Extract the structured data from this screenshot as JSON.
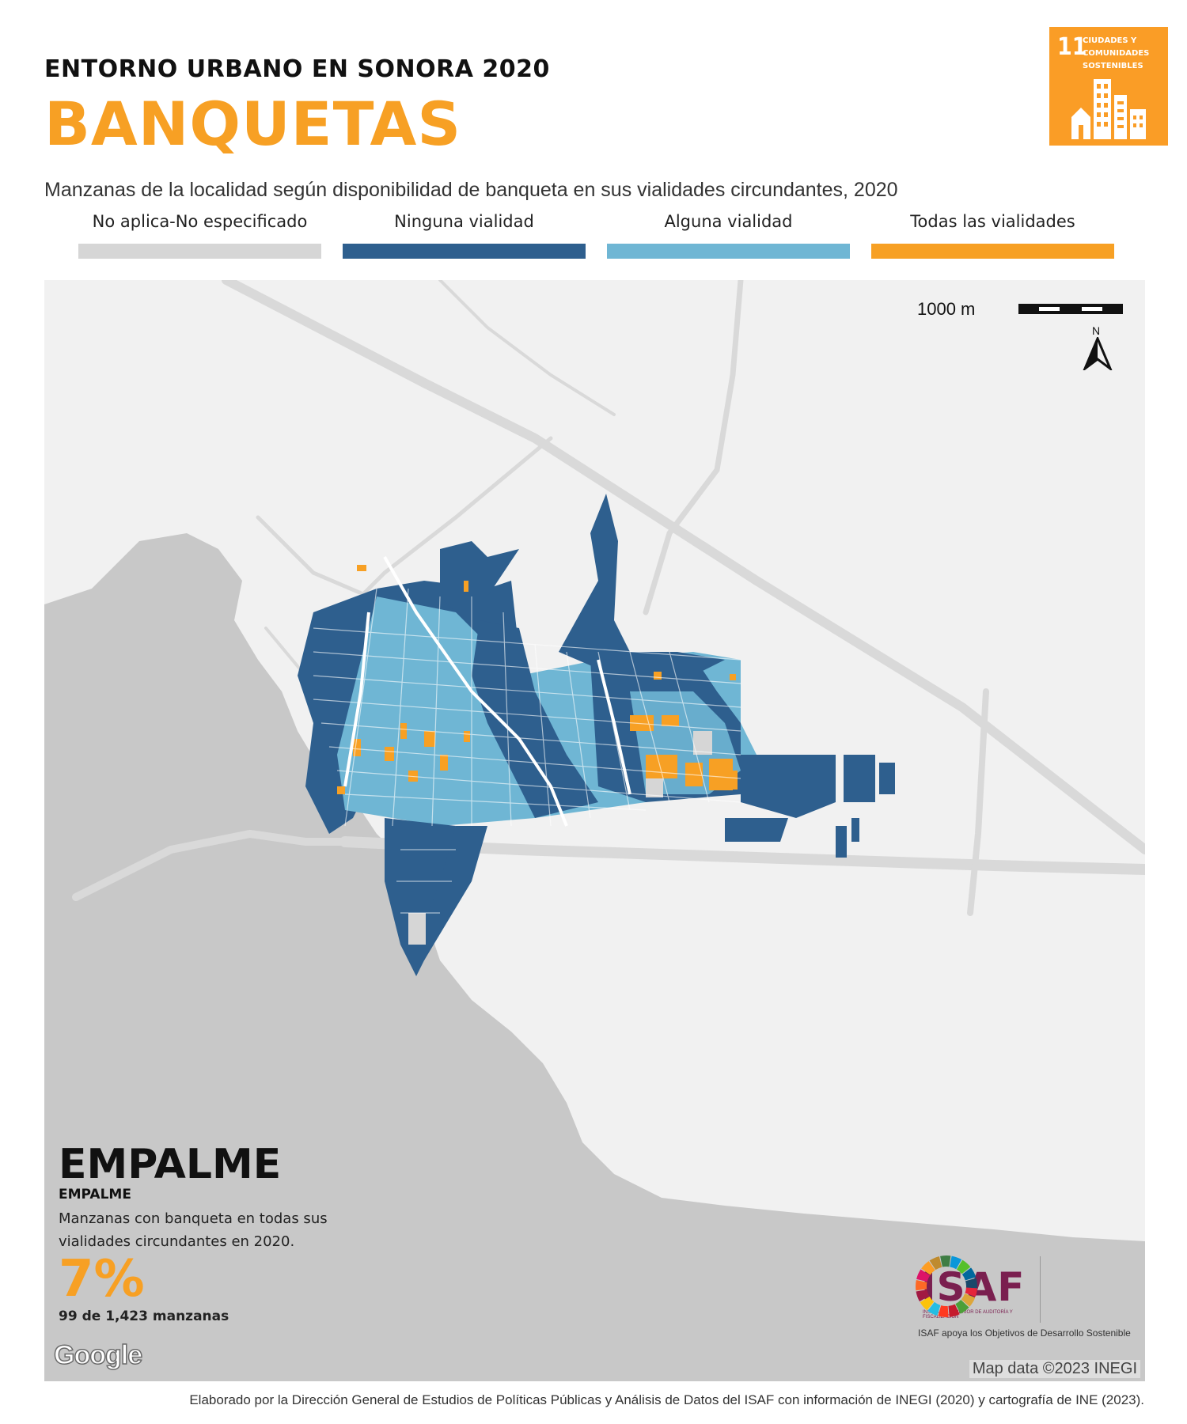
{
  "header": {
    "kicker": "ENTORNO URBANO EN SONORA 2020",
    "title": "BANQUETAS",
    "subtitle": "Manzanas de la localidad según disponibilidad de banqueta en sus vialidades circundantes, 2020"
  },
  "sdg_badge": {
    "number": "11",
    "text": "CIUDADES Y COMUNIDADES SOSTENIBLES",
    "color": "#fa9d26",
    "icon": "city-buildings-icon"
  },
  "legend": [
    {
      "label": "No aplica-No especificado",
      "color": "#d6d6d6"
    },
    {
      "label": "Ninguna vialidad",
      "color": "#2e5f8e"
    },
    {
      "label": "Alguna vialidad",
      "color": "#6fb6d4"
    },
    {
      "label": "Todas las vialidades",
      "color": "#f7a024"
    }
  ],
  "map": {
    "scale_label": "1000 m",
    "north_label": "N",
    "place_name": "EMPALME",
    "place_subname": "EMPALME",
    "stat_description": "Manzanas con banqueta en todas sus vialidades circundantes en 2020.",
    "stat_percent": "7%",
    "stat_count": "99 de 1,423 manzanas",
    "basemap_logo": "Google",
    "map_credit": "Map data ©2023 INEGI",
    "water_color": "#c8c8c8",
    "land_color": "#f1f1f1",
    "road_color": "#d8d8d8"
  },
  "partner": {
    "isaf_logo": "ISAF",
    "isaf_small_text": "INSTITUTO SUPERIOR DE AUDITORÍA Y FISCALIZACIÓN",
    "caption": "ISAF apoya los Objetivos de Desarrollo Sostenible",
    "sdg_wheel": "sdg-wheel-icon"
  },
  "footer": {
    "credit": "Elaborado por la Dirección General de Estudios de Políticas Públicas y Análisis de Datos del ISAF con información de INEGI (2020) y cartografía de INE (2023)."
  }
}
